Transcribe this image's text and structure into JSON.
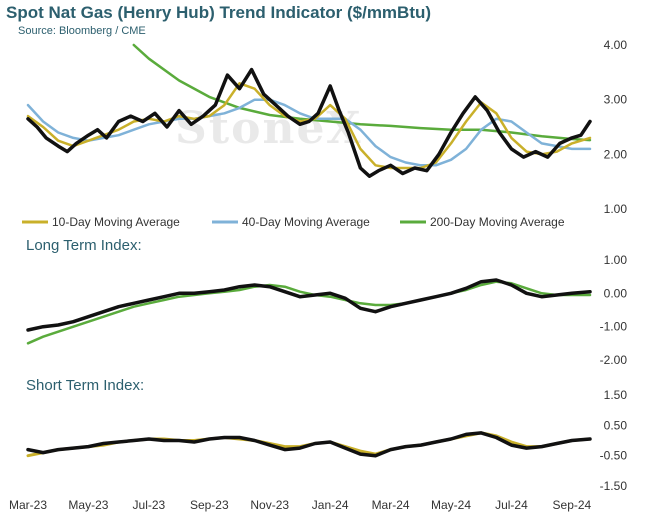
{
  "title": "Spot Nat Gas (Henry Hub) Trend Indicator ($/mmBtu)",
  "subtitle": "Source: Bloomberg / CME",
  "watermark": "StoneX",
  "colors": {
    "spot": "#111111",
    "ma10": "#c9b02a",
    "ma40": "#7fb2d8",
    "ma200": "#5aab3c",
    "title": "#2c5f6e"
  },
  "chart_data": [
    {
      "type": "line",
      "title": "Spot Nat Gas (Henry Hub) Trend Indicator ($/mmBtu)",
      "x_ticks": [
        "Mar-23",
        "May-23",
        "Jul-23",
        "Sep-23",
        "Nov-23",
        "Jan-24",
        "Mar-24",
        "May-24",
        "Jul-24",
        "Sep-24"
      ],
      "ylim": [
        1.0,
        4.0
      ],
      "y_ticks": [
        "4.00",
        "3.00",
        "2.00",
        "1.00"
      ],
      "legend": [
        "10-Day Moving Average",
        "40-Day Moving Average",
        "200-Day Moving Average"
      ],
      "series": [
        {
          "key": "spot",
          "x": [
            0,
            0.3,
            0.6,
            1,
            1.3,
            1.6,
            2,
            2.3,
            2.6,
            3,
            3.4,
            3.8,
            4.2,
            4.6,
            5,
            5.4,
            5.8,
            6.2,
            6.6,
            7,
            7.4,
            7.8,
            8.2,
            8.6,
            9,
            9.3,
            9.6,
            10,
            10.3,
            10.6,
            11,
            11.3,
            11.6,
            12,
            12.4,
            12.8,
            13.2,
            13.6,
            14,
            14.4,
            14.8,
            15.2,
            15.6,
            16,
            16.4,
            16.8,
            17.2,
            17.6,
            18,
            18.3,
            18.6
          ],
          "values": [
            2.65,
            2.5,
            2.3,
            2.15,
            2.05,
            2.2,
            2.35,
            2.45,
            2.3,
            2.6,
            2.7,
            2.6,
            2.75,
            2.5,
            2.8,
            2.55,
            2.7,
            2.9,
            3.45,
            3.2,
            3.55,
            3.1,
            2.9,
            2.7,
            2.55,
            2.6,
            2.75,
            3.25,
            2.8,
            2.4,
            1.75,
            1.6,
            1.7,
            1.8,
            1.65,
            1.75,
            1.7,
            2.0,
            2.4,
            2.75,
            3.05,
            2.8,
            2.4,
            2.1,
            1.95,
            2.05,
            1.95,
            2.2,
            2.3,
            2.35,
            2.6
          ]
        },
        {
          "key": "ma10",
          "x": [
            0,
            0.5,
            1,
            1.5,
            2,
            2.5,
            3,
            3.5,
            4,
            4.5,
            5,
            5.5,
            6,
            6.5,
            7,
            7.5,
            8,
            8.5,
            9,
            9.5,
            10,
            10.5,
            11,
            11.5,
            12,
            12.5,
            13,
            13.5,
            14,
            14.5,
            15,
            15.5,
            16,
            16.5,
            17,
            17.5,
            18,
            18.6
          ],
          "values": [
            2.7,
            2.5,
            2.25,
            2.15,
            2.25,
            2.35,
            2.45,
            2.6,
            2.65,
            2.6,
            2.7,
            2.65,
            2.7,
            2.9,
            3.3,
            3.2,
            2.9,
            2.7,
            2.6,
            2.65,
            2.9,
            2.65,
            2.1,
            1.8,
            1.75,
            1.75,
            1.75,
            1.85,
            2.2,
            2.6,
            2.95,
            2.75,
            2.3,
            2.05,
            2.0,
            2.05,
            2.2,
            2.3
          ]
        },
        {
          "key": "ma40",
          "x": [
            0,
            0.5,
            1,
            1.5,
            2,
            2.5,
            3,
            3.5,
            4,
            4.5,
            5,
            5.5,
            6,
            6.5,
            7,
            7.5,
            8,
            8.5,
            9,
            9.5,
            10,
            10.5,
            11,
            11.5,
            12,
            12.5,
            13,
            13.5,
            14,
            14.5,
            15,
            15.5,
            16,
            16.5,
            17,
            17.5,
            18,
            18.6
          ],
          "values": [
            2.9,
            2.6,
            2.4,
            2.3,
            2.25,
            2.3,
            2.35,
            2.45,
            2.55,
            2.6,
            2.65,
            2.65,
            2.7,
            2.75,
            2.85,
            3.0,
            3.0,
            2.9,
            2.75,
            2.65,
            2.65,
            2.65,
            2.45,
            2.15,
            1.95,
            1.85,
            1.8,
            1.8,
            1.9,
            2.1,
            2.45,
            2.65,
            2.6,
            2.4,
            2.2,
            2.15,
            2.1,
            2.1
          ]
        },
        {
          "key": "ma200",
          "x": [
            3.5,
            4,
            5,
            6,
            7,
            8,
            9,
            10,
            11,
            12,
            13,
            14,
            15,
            16,
            17,
            18,
            18.6
          ],
          "values": [
            4.0,
            3.75,
            3.35,
            3.05,
            2.85,
            2.72,
            2.65,
            2.6,
            2.55,
            2.52,
            2.48,
            2.45,
            2.45,
            2.4,
            2.33,
            2.28,
            2.26
          ]
        }
      ]
    },
    {
      "type": "line",
      "title": "Long Term Index:",
      "ylim": [
        -2.0,
        1.0
      ],
      "y_ticks": [
        "1.00",
        "0.00",
        "-1.00",
        "-2.00"
      ],
      "series": [
        {
          "key": "spot",
          "x": [
            0,
            0.5,
            1,
            1.5,
            2,
            2.5,
            3,
            3.5,
            4,
            4.5,
            5,
            5.5,
            6,
            6.5,
            7,
            7.5,
            8,
            8.5,
            9,
            9.5,
            10,
            10.5,
            11,
            11.5,
            12,
            12.5,
            13,
            13.5,
            14,
            14.5,
            15,
            15.5,
            16,
            16.5,
            17,
            17.5,
            18,
            18.6
          ],
          "values": [
            -1.1,
            -1.0,
            -0.95,
            -0.85,
            -0.7,
            -0.55,
            -0.4,
            -0.3,
            -0.2,
            -0.1,
            0.0,
            0.0,
            0.05,
            0.1,
            0.2,
            0.25,
            0.2,
            0.05,
            -0.1,
            -0.05,
            0.0,
            -0.15,
            -0.45,
            -0.55,
            -0.4,
            -0.3,
            -0.2,
            -0.1,
            0.0,
            0.15,
            0.35,
            0.4,
            0.25,
            0.0,
            -0.1,
            -0.05,
            0.0,
            0.05
          ]
        },
        {
          "key": "ma200",
          "x": [
            0,
            0.5,
            1,
            1.5,
            2,
            2.5,
            3,
            3.5,
            4,
            4.5,
            5,
            5.5,
            6,
            6.5,
            7,
            7.5,
            8,
            8.5,
            9,
            9.5,
            10,
            10.5,
            11,
            11.5,
            12,
            12.5,
            13,
            13.5,
            14,
            14.5,
            15,
            15.5,
            16,
            16.5,
            17,
            17.5,
            18,
            18.6
          ],
          "values": [
            -1.5,
            -1.3,
            -1.15,
            -1.0,
            -0.85,
            -0.7,
            -0.55,
            -0.4,
            -0.3,
            -0.2,
            -0.1,
            -0.05,
            0.0,
            0.05,
            0.1,
            0.2,
            0.25,
            0.2,
            0.05,
            -0.05,
            -0.1,
            -0.2,
            -0.3,
            -0.35,
            -0.35,
            -0.3,
            -0.2,
            -0.1,
            0.0,
            0.1,
            0.25,
            0.35,
            0.3,
            0.15,
            0.0,
            -0.05,
            -0.05,
            -0.05
          ]
        }
      ]
    },
    {
      "type": "line",
      "title": "Short Term Index:",
      "ylim": [
        -1.5,
        1.5
      ],
      "y_ticks": [
        "1.50",
        "0.50",
        "-0.50",
        "-1.50"
      ],
      "series": [
        {
          "key": "spot",
          "x": [
            0,
            0.5,
            1,
            1.5,
            2,
            2.5,
            3,
            3.5,
            4,
            4.5,
            5,
            5.5,
            6,
            6.5,
            7,
            7.5,
            8,
            8.5,
            9,
            9.5,
            10,
            10.5,
            11,
            11.5,
            12,
            12.5,
            13,
            13.5,
            14,
            14.5,
            15,
            15.5,
            16,
            16.5,
            17,
            17.5,
            18,
            18.6
          ],
          "values": [
            -0.3,
            -0.4,
            -0.3,
            -0.25,
            -0.2,
            -0.1,
            -0.05,
            0.0,
            0.05,
            0.0,
            0.0,
            -0.05,
            0.05,
            0.1,
            0.1,
            0.0,
            -0.15,
            -0.3,
            -0.25,
            -0.1,
            -0.05,
            -0.25,
            -0.45,
            -0.5,
            -0.3,
            -0.2,
            -0.15,
            -0.05,
            0.05,
            0.2,
            0.25,
            0.1,
            -0.15,
            -0.25,
            -0.2,
            -0.1,
            0.0,
            0.05
          ]
        },
        {
          "key": "ma10",
          "x": [
            0,
            0.5,
            1,
            1.5,
            2,
            2.5,
            3,
            3.5,
            4,
            4.5,
            5,
            5.5,
            6,
            6.5,
            7,
            7.5,
            8,
            8.5,
            9,
            9.5,
            10,
            10.5,
            11,
            11.5,
            12,
            12.5,
            13,
            13.5,
            14,
            14.5,
            15,
            15.5,
            16,
            16.5,
            17,
            17.5,
            18,
            18.6
          ],
          "values": [
            -0.5,
            -0.4,
            -0.3,
            -0.25,
            -0.2,
            -0.15,
            -0.05,
            0.0,
            0.05,
            0.05,
            0.0,
            0.0,
            0.05,
            0.1,
            0.05,
            0.0,
            -0.1,
            -0.2,
            -0.2,
            -0.1,
            -0.05,
            -0.2,
            -0.35,
            -0.45,
            -0.3,
            -0.2,
            -0.15,
            -0.05,
            0.05,
            0.15,
            0.25,
            0.15,
            -0.05,
            -0.2,
            -0.2,
            -0.1,
            0.0,
            0.05
          ]
        }
      ]
    }
  ]
}
